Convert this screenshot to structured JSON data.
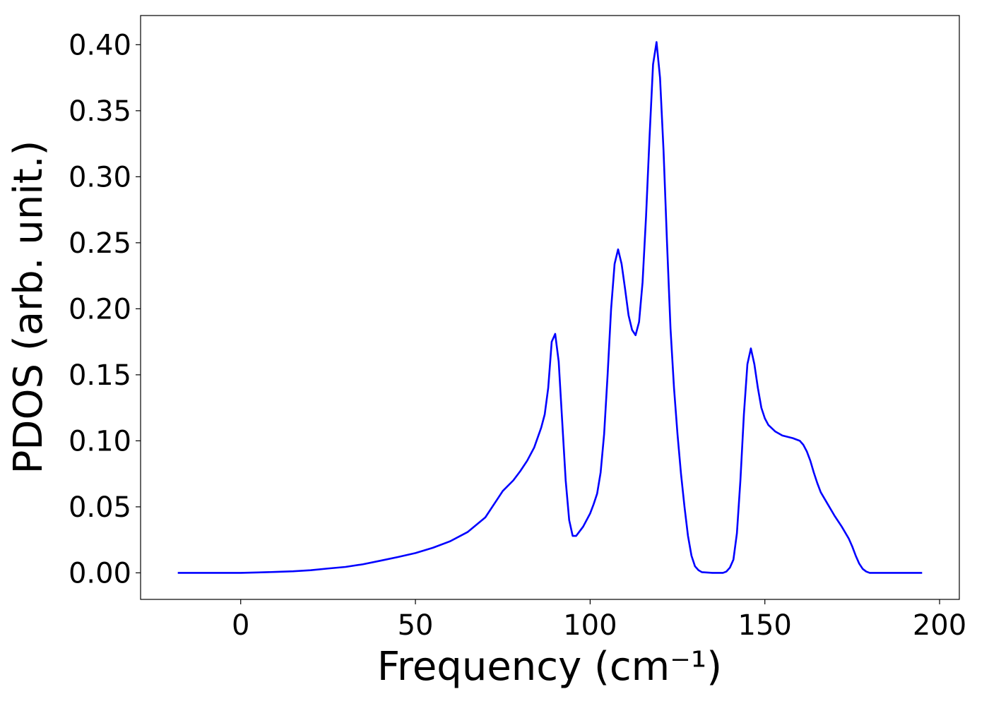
{
  "chart_data": {
    "type": "line",
    "xlabel": "Frequency (cm⁻¹)",
    "ylabel": "PDOS (arb. unit.)",
    "xlim": [
      -28.65,
      205.65
    ],
    "ylim": [
      -0.0201,
      0.4221
    ],
    "xticks": [
      0,
      50,
      100,
      150,
      200
    ],
    "yticks": [
      {
        "value": 0,
        "label": "0.00"
      },
      0.05,
      {
        "value": 0.1,
        "label": "0.10"
      },
      0.15,
      {
        "value": 0.2,
        "label": "0.20"
      },
      0.25,
      {
        "value": 0.3,
        "label": "0.30"
      },
      0.35,
      {
        "value": 0.4,
        "label": "0.40"
      }
    ],
    "grid": false,
    "x": [
      -18,
      -10,
      0,
      5,
      10,
      15,
      20,
      25,
      30,
      35,
      40,
      45,
      50,
      55,
      60,
      65,
      70,
      73,
      75,
      78,
      80,
      82,
      84,
      86,
      87,
      88,
      89,
      90,
      91,
      92,
      93,
      94,
      95,
      96,
      98,
      100,
      101,
      102,
      103,
      104,
      105,
      106,
      107,
      108,
      109,
      110,
      111,
      112,
      113,
      114,
      115,
      116,
      117,
      118,
      119,
      120,
      121,
      122,
      123,
      124,
      125,
      126,
      127,
      128,
      129,
      130,
      131,
      132,
      135,
      138,
      139,
      140,
      141,
      142,
      143,
      144,
      145,
      146,
      147,
      148,
      149,
      150,
      151,
      153,
      155,
      158,
      160,
      161,
      162,
      163,
      164,
      165,
      166,
      168,
      170,
      172,
      174,
      175,
      176,
      177,
      178,
      179,
      180,
      185,
      195
    ],
    "series": [
      {
        "color": "#0000ff",
        "values": [
          0,
          0,
          0,
          0.0003,
          0.0007,
          0.0012,
          0.002,
          0.0033,
          0.0045,
          0.0065,
          0.0092,
          0.012,
          0.015,
          0.019,
          0.024,
          0.031,
          0.042,
          0.054,
          0.062,
          0.07,
          0.077,
          0.085,
          0.095,
          0.11,
          0.12,
          0.14,
          0.175,
          0.181,
          0.16,
          0.115,
          0.07,
          0.04,
          0.028,
          0.028,
          0.035,
          0.045,
          0.052,
          0.06,
          0.076,
          0.105,
          0.15,
          0.2,
          0.234,
          0.245,
          0.234,
          0.215,
          0.195,
          0.184,
          0.18,
          0.19,
          0.22,
          0.27,
          0.33,
          0.385,
          0.402,
          0.375,
          0.32,
          0.25,
          0.185,
          0.14,
          0.105,
          0.075,
          0.05,
          0.028,
          0.013,
          0.005,
          0.002,
          0.0005,
          0,
          0,
          0.001,
          0.004,
          0.01,
          0.03,
          0.07,
          0.12,
          0.158,
          0.17,
          0.158,
          0.14,
          0.125,
          0.117,
          0.112,
          0.107,
          0.104,
          0.102,
          0.1,
          0.097,
          0.092,
          0.085,
          0.076,
          0.068,
          0.061,
          0.052,
          0.043,
          0.035,
          0.026,
          0.02,
          0.013,
          0.007,
          0.003,
          0.001,
          0,
          0,
          0
        ]
      }
    ]
  }
}
